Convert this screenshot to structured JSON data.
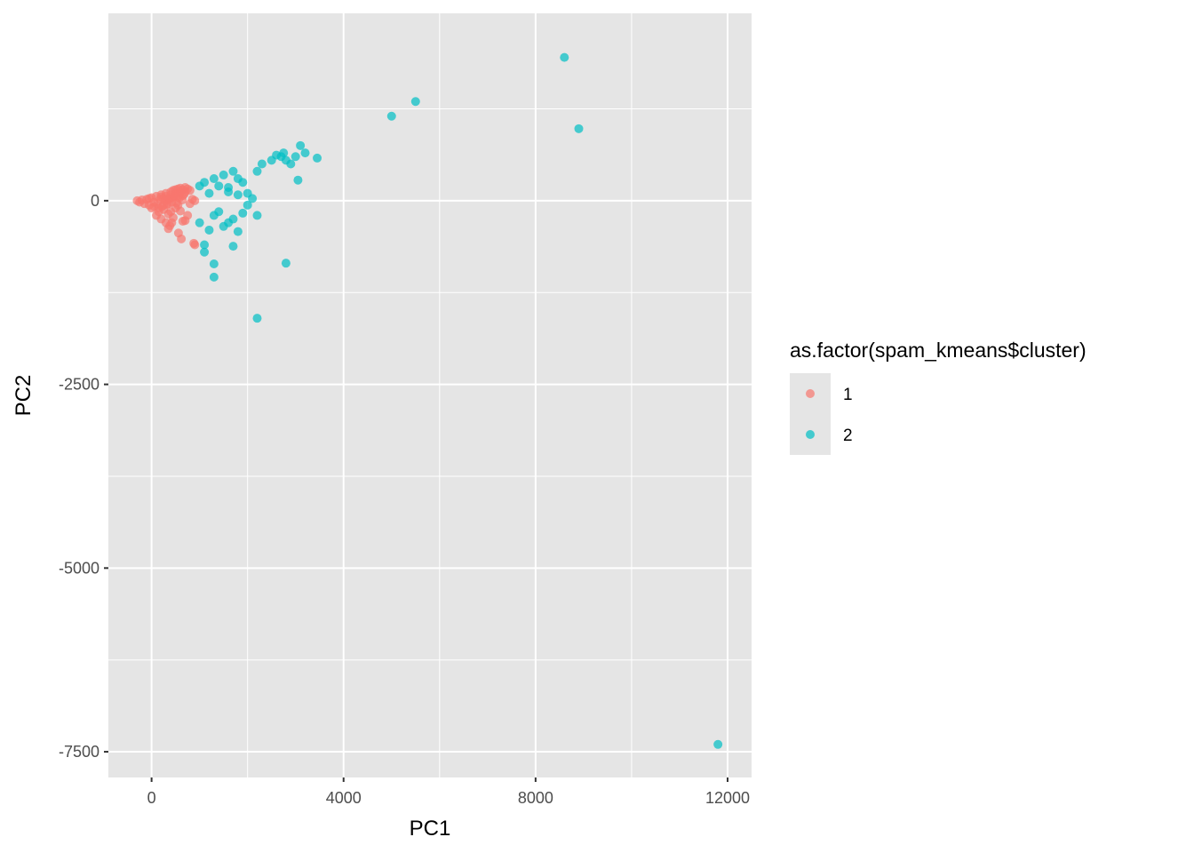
{
  "chart_data": {
    "type": "scatter",
    "title": "",
    "xlabel": "PC1",
    "ylabel": "PC2",
    "xlim": [
      -900,
      12500
    ],
    "ylim": [
      -7850,
      2550
    ],
    "x_ticks": [
      0,
      4000,
      8000,
      12000
    ],
    "x_tick_labels": [
      "0",
      "4000",
      "8000",
      "12000"
    ],
    "y_ticks": [
      0,
      -2500,
      -5000,
      -7500
    ],
    "y_tick_labels": [
      "0",
      "-2500",
      "-5000",
      "-7500"
    ],
    "x_minor_gridlines": [
      2000,
      6000,
      10000
    ],
    "y_minor_gridlines": [
      1250,
      -1250,
      -3750,
      -6250
    ],
    "grid": true,
    "panel_background": "#e5e5e5",
    "grid_color": "#ffffff",
    "point_alpha": 0.7,
    "legend": {
      "title": "as.factor(spam_kmeans$cluster)",
      "position": "right",
      "entries": [
        {
          "label": "1",
          "color": "#F8766D"
        },
        {
          "label": "2",
          "color": "#00BFC4"
        }
      ]
    },
    "series": [
      {
        "name": "1",
        "color": "#F8766D",
        "points": [
          [
            -300,
            0
          ],
          [
            -250,
            -20
          ],
          [
            -200,
            10
          ],
          [
            -150,
            -40
          ],
          [
            -100,
            20
          ],
          [
            -50,
            -60
          ],
          [
            0,
            40
          ],
          [
            50,
            -80
          ],
          [
            100,
            60
          ],
          [
            150,
            -100
          ],
          [
            200,
            80
          ],
          [
            250,
            -60
          ],
          [
            300,
            100
          ],
          [
            350,
            -40
          ],
          [
            400,
            120
          ],
          [
            450,
            140
          ],
          [
            500,
            150
          ],
          [
            550,
            160
          ],
          [
            600,
            170
          ],
          [
            650,
            150
          ],
          [
            700,
            180
          ],
          [
            750,
            160
          ],
          [
            800,
            140
          ],
          [
            100,
            -200
          ],
          [
            150,
            -150
          ],
          [
            200,
            -250
          ],
          [
            250,
            -120
          ],
          [
            300,
            -300
          ],
          [
            350,
            -180
          ],
          [
            400,
            -150
          ],
          [
            450,
            -230
          ],
          [
            500,
            -100
          ],
          [
            550,
            -60
          ],
          [
            600,
            -140
          ],
          [
            650,
            -280
          ],
          [
            700,
            -270
          ],
          [
            750,
            -200
          ],
          [
            800,
            -40
          ],
          [
            850,
            20
          ],
          [
            900,
            0
          ],
          [
            350,
            -380
          ],
          [
            380,
            -340
          ],
          [
            420,
            -300
          ],
          [
            560,
            -440
          ],
          [
            620,
            -520
          ],
          [
            900,
            -600
          ],
          [
            880,
            -580
          ],
          [
            200,
            50
          ],
          [
            250,
            30
          ],
          [
            300,
            60
          ],
          [
            350,
            20
          ],
          [
            400,
            80
          ],
          [
            450,
            40
          ],
          [
            500,
            90
          ],
          [
            550,
            50
          ],
          [
            600,
            110
          ],
          [
            650,
            70
          ],
          [
            700,
            120
          ],
          [
            0,
            -100
          ],
          [
            50,
            -20
          ],
          [
            -50,
            30
          ],
          [
            120,
            -40
          ],
          [
            180,
            20
          ],
          [
            220,
            -80
          ],
          [
            280,
            0
          ],
          [
            320,
            -50
          ],
          [
            380,
            30
          ],
          [
            420,
            -20
          ],
          [
            480,
            60
          ],
          [
            520,
            -30
          ],
          [
            580,
            40
          ],
          [
            640,
            10
          ],
          [
            680,
            90
          ]
        ]
      },
      {
        "name": "2",
        "color": "#00BFC4",
        "points": [
          [
            1000,
            200
          ],
          [
            1100,
            250
          ],
          [
            1200,
            100
          ],
          [
            1300,
            300
          ],
          [
            1400,
            200
          ],
          [
            1500,
            350
          ],
          [
            1600,
            180
          ],
          [
            1700,
            400
          ],
          [
            1800,
            300
          ],
          [
            1900,
            250
          ],
          [
            2000,
            100
          ],
          [
            2100,
            30
          ],
          [
            2200,
            400
          ],
          [
            2300,
            500
          ],
          [
            1000,
            -300
          ],
          [
            1200,
            -400
          ],
          [
            1300,
            -200
          ],
          [
            1400,
            -150
          ],
          [
            1500,
            -350
          ],
          [
            1600,
            -300
          ],
          [
            1700,
            -250
          ],
          [
            1800,
            -420
          ],
          [
            1900,
            -170
          ],
          [
            2000,
            -60
          ],
          [
            1100,
            -600
          ],
          [
            1100,
            -700
          ],
          [
            1300,
            -860
          ],
          [
            1300,
            -1040
          ],
          [
            1700,
            -620
          ],
          [
            2200,
            -200
          ],
          [
            2200,
            -1600
          ],
          [
            2800,
            -850
          ],
          [
            2700,
            600
          ],
          [
            2750,
            650
          ],
          [
            2800,
            550
          ],
          [
            2900,
            500
          ],
          [
            3000,
            600
          ],
          [
            3100,
            750
          ],
          [
            3200,
            650
          ],
          [
            3050,
            280
          ],
          [
            3450,
            580
          ],
          [
            1600,
            120
          ],
          [
            1800,
            80
          ],
          [
            2500,
            550
          ],
          [
            2600,
            620
          ],
          [
            5000,
            1150
          ],
          [
            5500,
            1350
          ],
          [
            8600,
            1950
          ],
          [
            8900,
            980
          ],
          [
            11800,
            -7400
          ]
        ]
      }
    ]
  }
}
